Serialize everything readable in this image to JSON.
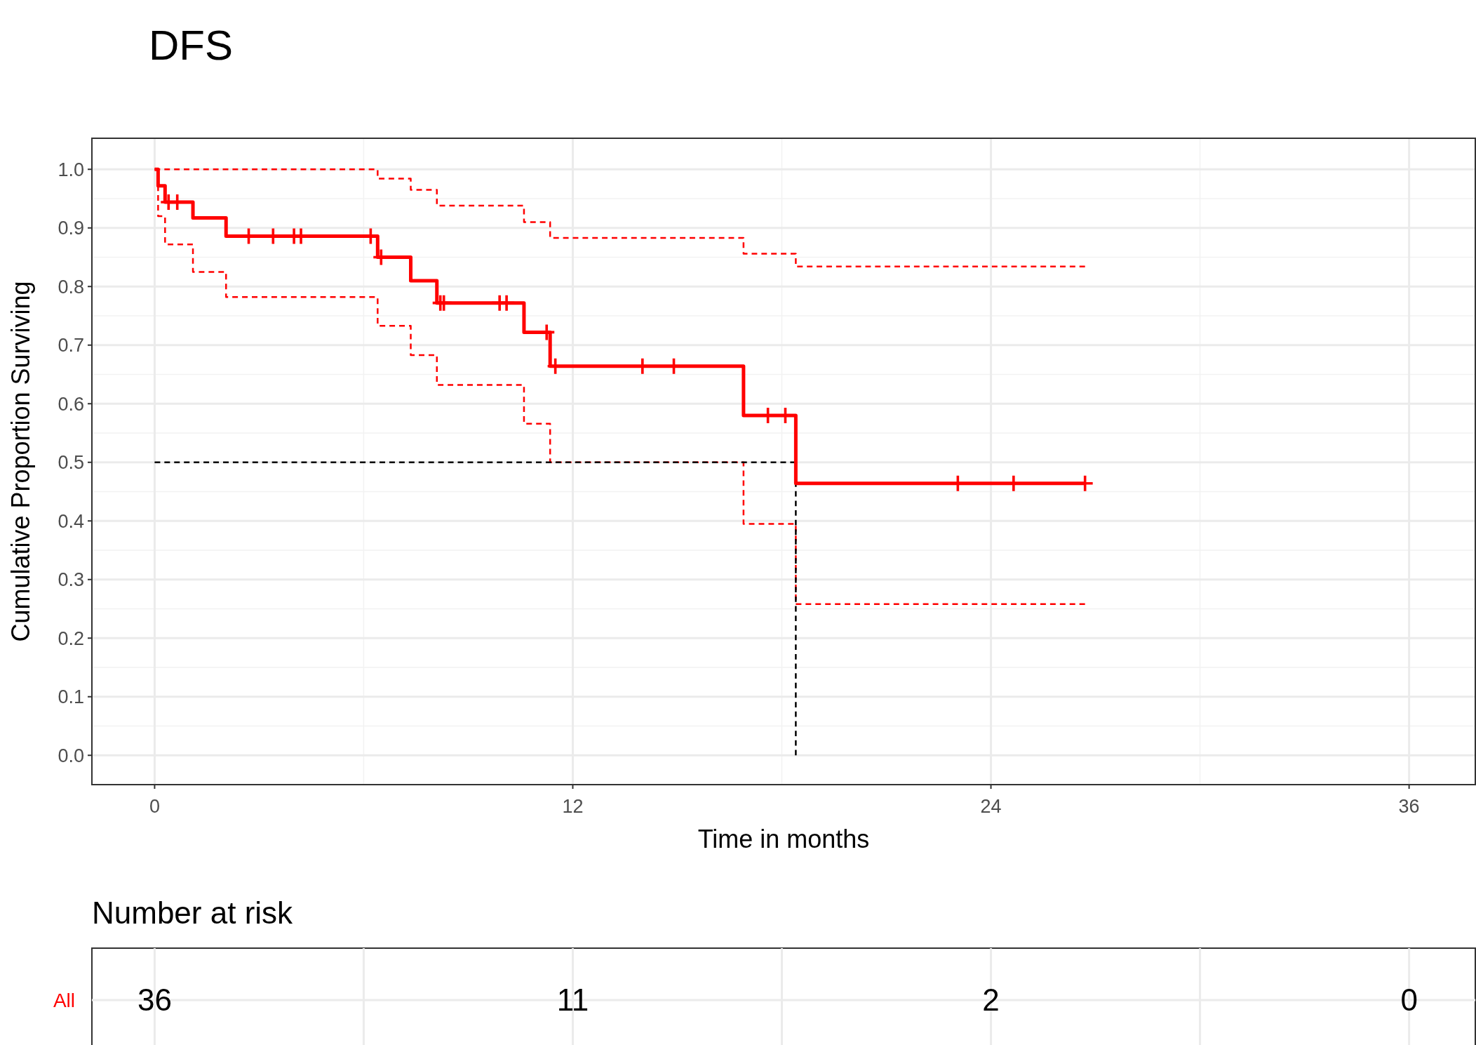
{
  "chart_data": [
    {
      "type": "step",
      "title": "DFS",
      "xlabel": "Time in months",
      "ylabel": "Cumulative Proportion Surviving",
      "xlim": [
        -1.8,
        37.9
      ],
      "xticks": [
        0,
        12,
        24,
        36
      ],
      "ylim": [
        -0.05,
        1.053
      ],
      "yticks": [
        {
          "value": 0,
          "label": "0.0"
        },
        {
          "value": 0.1,
          "label": "0.1"
        },
        {
          "value": 0.2,
          "label": "0.2"
        },
        {
          "value": 0.3,
          "label": "0.3"
        },
        {
          "value": 0.4,
          "label": "0.4"
        },
        {
          "value": 0.5,
          "label": "0.5"
        },
        {
          "value": 0.6,
          "label": "0.6"
        },
        {
          "value": 0.7,
          "label": "0.7"
        },
        {
          "value": 0.8,
          "label": "0.8"
        },
        {
          "value": 0.9,
          "label": "0.9"
        },
        {
          "value": 1,
          "label": "1.0"
        }
      ],
      "grid": true,
      "series": [
        {
          "type": "step",
          "color": "#ff0000",
          "line_style": "dashed",
          "x": [
            0,
            0.1,
            0.3,
            1.1,
            2.05,
            6.4,
            7.35,
            8.1,
            10.6,
            11.35,
            16.9,
            18.4,
            26.7
          ],
          "values": [
            1,
            0.92,
            0.872,
            0.825,
            0.782,
            0.733,
            0.683,
            0.632,
            0.566,
            0.5,
            0.395,
            0.258,
            0.258
          ]
        },
        {
          "type": "step",
          "color": "#ff0000",
          "line_style": "dashed",
          "x": [
            0,
            6.4,
            7.35,
            8.1,
            10.6,
            11.35,
            16.9,
            18.4,
            26.7
          ],
          "values": [
            1,
            0.984,
            0.965,
            0.938,
            0.91,
            0.883,
            0.856,
            0.834,
            0.834
          ]
        },
        {
          "type": "line",
          "color": "#000000",
          "line_style": "dashed",
          "x": [
            0,
            18.4
          ],
          "values": [
            0.5,
            0.5
          ]
        },
        {
          "type": "line",
          "color": "#000000",
          "line_style": "dashed",
          "x": [
            18.4,
            18.4
          ],
          "values": [
            0.5,
            0
          ]
        },
        {
          "type": "step",
          "color": "#ff0000",
          "line_style": "solid",
          "x": [
            0,
            0.1,
            0.3,
            1.1,
            2.05,
            6.4,
            7.35,
            8.1,
            10.6,
            11.35,
            16.9,
            18.4,
            26.7
          ],
          "values": [
            1,
            0.972,
            0.944,
            0.917,
            0.886,
            0.85,
            0.81,
            0.772,
            0.722,
            0.664,
            0.58,
            0.464,
            0.464
          ]
        },
        {
          "type": "scatter",
          "color": "#ff0000",
          "marker": "cross",
          "x": [
            0.4,
            0.65,
            2.7,
            3.4,
            4.0,
            4.2,
            6.2,
            6.5,
            8.2,
            8.3,
            9.9,
            10.1,
            11.25,
            11.5,
            14.0,
            14.9,
            17.6,
            18.1,
            23.05,
            24.65,
            26.7
          ],
          "values": [
            0.944,
            0.944,
            0.886,
            0.886,
            0.886,
            0.886,
            0.886,
            0.85,
            0.772,
            0.772,
            0.772,
            0.772,
            0.722,
            0.664,
            0.664,
            0.664,
            0.58,
            0.58,
            0.464,
            0.464,
            0.464
          ]
        }
      ]
    },
    {
      "type": "other",
      "title": "Number at risk",
      "categories": [
        null,
        null,
        null,
        null
      ],
      "data_labels": true,
      "series": [
        {
          "name": "All",
          "color": "#ff0000",
          "values": [
            36,
            11,
            2,
            0
          ]
        }
      ]
    }
  ]
}
